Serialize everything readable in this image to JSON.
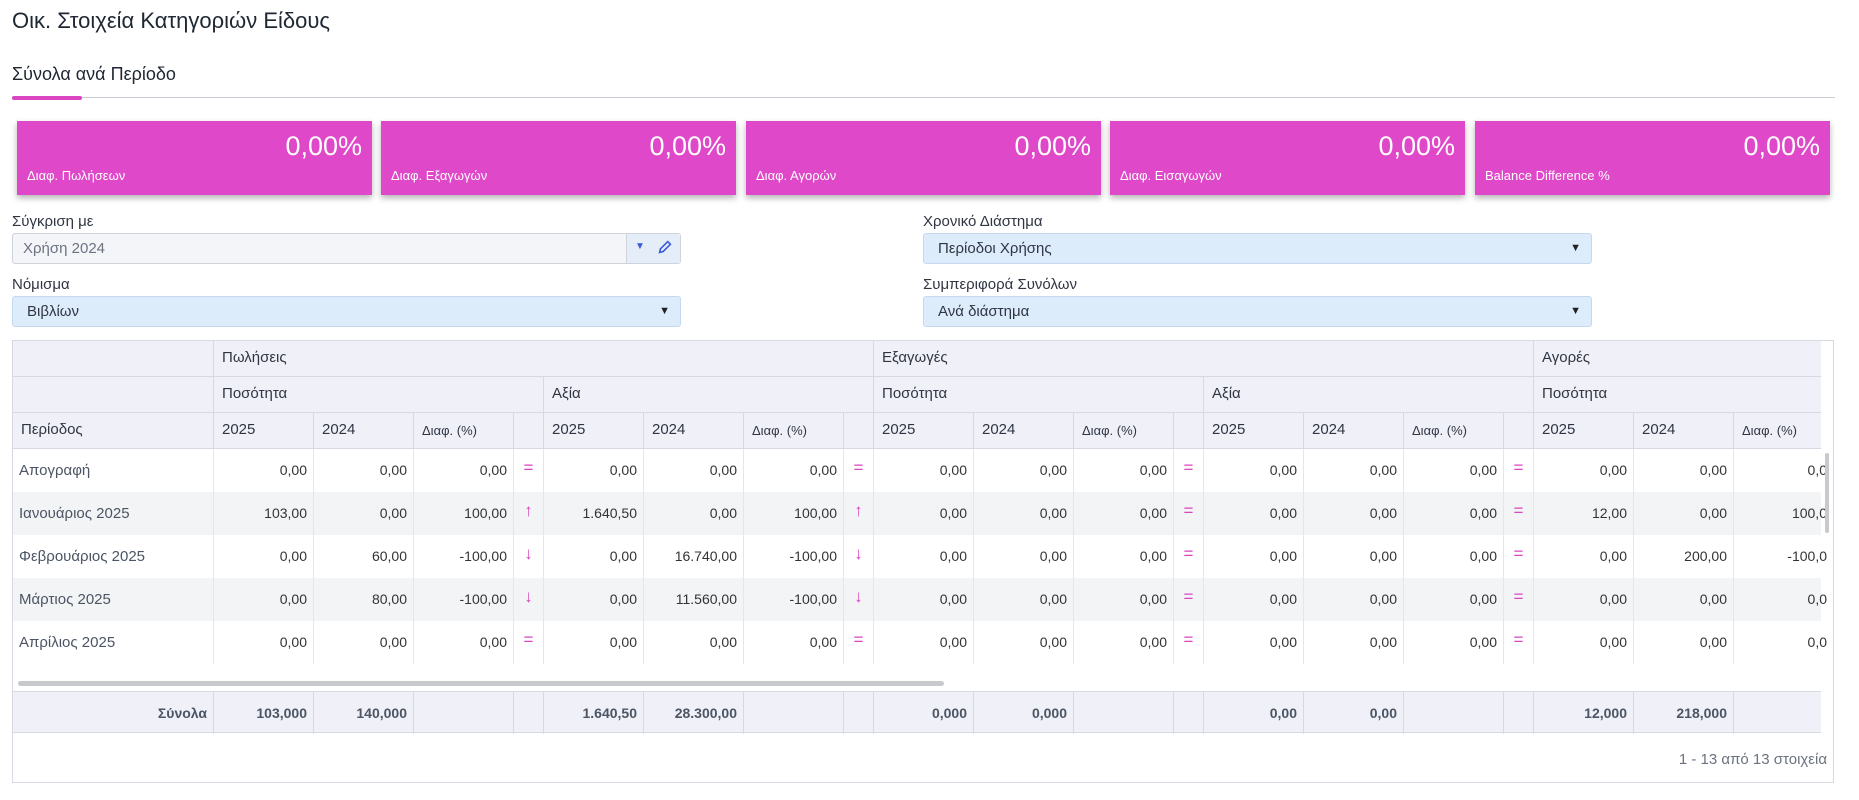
{
  "page": {
    "title": "Οικ. Στοιχεία Κατηγοριών Είδους"
  },
  "tabs": [
    {
      "label": "Σύνολα ανά Περίοδο",
      "active": true
    }
  ],
  "colors": {
    "accent": "#df48c8",
    "select_bg": "#ddecfb",
    "header_bg": "#f0f1f8"
  },
  "tiles": [
    {
      "value": "0,00%",
      "label": "Διαφ. Πωλήσεων"
    },
    {
      "value": "0,00%",
      "label": "Διαφ. Εξαγωγών"
    },
    {
      "value": "0,00%",
      "label": "Διαφ. Αγορών"
    },
    {
      "value": "0,00%",
      "label": "Διαφ. Εισαγωγών"
    },
    {
      "value": "0,00%",
      "label": "Balance Difference %"
    }
  ],
  "filters": {
    "compare": {
      "label": "Σύγκριση με",
      "value": "Χρήση 2024"
    },
    "period": {
      "label": "Χρονικό Διάστημα",
      "value": "Περίοδοι Χρήσης"
    },
    "currency": {
      "label": "Νόμισμα",
      "value": "Βιβλίων"
    },
    "totals": {
      "label": "Συμπεριφορά Συνόλων",
      "value": "Ανά διάστημα"
    }
  },
  "grid": {
    "groups": [
      "Πωλήσεις",
      "Εξαγωγές",
      "Αγορές"
    ],
    "quantity_label": "Ποσότητα",
    "value_label": "Αξία",
    "period_label": "Περίοδος",
    "year_current": "2025",
    "year_previous": "2024",
    "diff_label": "Διαφ. (%)",
    "rows": [
      {
        "period": "Απογραφή",
        "cells": [
          "0,00",
          "0,00",
          "0,00",
          "=",
          "0,00",
          "0,00",
          "0,00",
          "=",
          "0,00",
          "0,00",
          "0,00",
          "=",
          "0,00",
          "0,00",
          "0,00",
          "=",
          "0,00",
          "0,00",
          "0,0"
        ]
      },
      {
        "period": "Ιανουάριος 2025",
        "cells": [
          "103,00",
          "0,00",
          "100,00",
          "up",
          "1.640,50",
          "0,00",
          "100,00",
          "up",
          "0,00",
          "0,00",
          "0,00",
          "=",
          "0,00",
          "0,00",
          "0,00",
          "=",
          "12,00",
          "0,00",
          "100,0"
        ]
      },
      {
        "period": "Φεβρουάριος 2025",
        "cells": [
          "0,00",
          "60,00",
          "-100,00",
          "down",
          "0,00",
          "16.740,00",
          "-100,00",
          "down",
          "0,00",
          "0,00",
          "0,00",
          "=",
          "0,00",
          "0,00",
          "0,00",
          "=",
          "0,00",
          "200,00",
          "-100,0"
        ]
      },
      {
        "period": "Μάρτιος 2025",
        "cells": [
          "0,00",
          "80,00",
          "-100,00",
          "down",
          "0,00",
          "11.560,00",
          "-100,00",
          "down",
          "0,00",
          "0,00",
          "0,00",
          "=",
          "0,00",
          "0,00",
          "0,00",
          "=",
          "0,00",
          "0,00",
          "0,0"
        ]
      },
      {
        "period": "Απρίλιος 2025",
        "cells": [
          "0,00",
          "0,00",
          "0,00",
          "=",
          "0,00",
          "0,00",
          "0,00",
          "=",
          "0,00",
          "0,00",
          "0,00",
          "=",
          "0,00",
          "0,00",
          "0,00",
          "=",
          "0,00",
          "0,00",
          "0,0"
        ]
      }
    ],
    "totals": {
      "label": "Σύνολα",
      "cells": [
        "103,000",
        "140,000",
        "",
        "",
        "1.640,50",
        "28.300,00",
        "",
        "",
        "0,000",
        "0,000",
        "",
        "",
        "0,00",
        "0,00",
        "",
        "",
        "12,000",
        "218,000",
        ""
      ]
    },
    "pager": "1 - 13 από 13 στοιχεία"
  }
}
